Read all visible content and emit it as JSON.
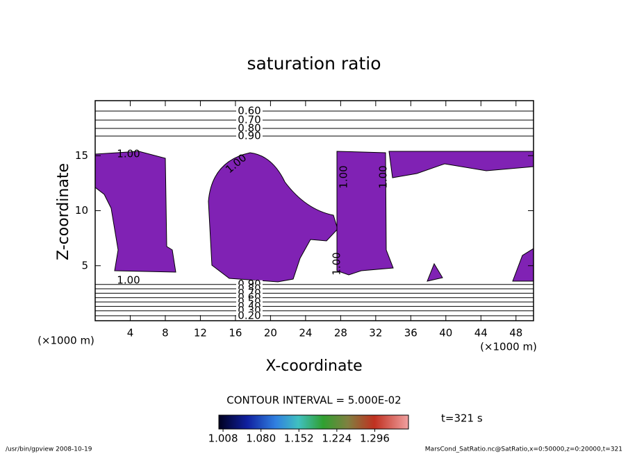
{
  "chart_data": {
    "type": "contour",
    "title": "saturation ratio",
    "xlabel": "X-coordinate",
    "ylabel": "Z-coordinate",
    "x_unit": "(×1000 m)",
    "xlim": [
      0,
      50
    ],
    "ylim": [
      0,
      20
    ],
    "xticks": [
      4,
      8,
      12,
      16,
      20,
      24,
      28,
      32,
      36,
      40,
      44,
      48
    ],
    "yticks": [
      5,
      10,
      15
    ],
    "fill_color": "#8022b4",
    "contours": [
      {
        "level": {
          "value": 0.6,
          "label": "0.60"
        },
        "z": 19.05
      },
      {
        "level": {
          "value": 0.7,
          "label": "0.70"
        },
        "z": 18.23
      },
      {
        "level": {
          "value": 0.8,
          "label": "0.80"
        },
        "z": 17.48
      },
      {
        "level": {
          "value": 0.9,
          "label": "0.90"
        },
        "z": 16.78
      },
      {
        "level": {
          "value": 0.9,
          "label": "0.90"
        },
        "z": 3.3
      },
      {
        "level": {
          "value": 0.8,
          "label": "0.80"
        },
        "z": 2.9
      },
      {
        "level": {
          "value": 0.7,
          "label": "0.70"
        },
        "z": 2.5
      },
      {
        "level": {
          "value": 0.6,
          "label": "0.60"
        },
        "z": 2.1
      },
      {
        "level": {
          "value": 0.5,
          "label": "0.50"
        },
        "z": 1.7
      },
      {
        "level": {
          "value": 0.4,
          "label": "0.40"
        },
        "z": 1.3
      },
      {
        "level": {
          "value": 0.3,
          "label": "0.30"
        },
        "z": 0.9
      },
      {
        "level": {
          "value": 0.2,
          "label": "0.20"
        },
        "z": 0.45
      }
    ],
    "region_labels": [
      "1.00",
      "1.00",
      "1.00",
      "1.00",
      "1.00",
      "1.00"
    ],
    "contour_interval": "CONTOUR INTERVAL = 5.000E-02",
    "time_label": "t=321 s",
    "clim": [
      1.0,
      1.36
    ],
    "cticks": [
      1.008,
      {
        "value": 1.08,
        "label": "1.080"
      },
      1.152,
      1.224,
      1.296
    ],
    "footer_left": "/usr/bin/gpview  2008-10-19",
    "footer_right": "MarsCond_SatRatio.nc@SatRatio,x=0:50000,z=0:20000,t=321"
  }
}
